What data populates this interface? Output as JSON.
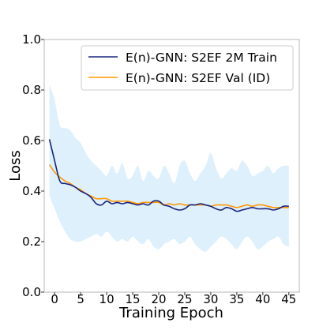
{
  "chart_data": {
    "type": "line",
    "xlabel": "Training Epoch",
    "ylabel": "Loss",
    "xlim": [
      -2,
      47
    ],
    "ylim": [
      0.0,
      1.0
    ],
    "xticks": [
      0,
      5,
      10,
      15,
      20,
      25,
      30,
      35,
      40,
      45
    ],
    "yticks": [
      0.0,
      0.2,
      0.4,
      0.6,
      0.8,
      1.0
    ],
    "ytick_labels": [
      "0.0",
      "0.2",
      "0.4",
      "0.6",
      "0.8",
      "1.0"
    ],
    "grid": false,
    "legend_position": "top-right",
    "band": {
      "color": "#ddf0fb",
      "x": [
        -1,
        0,
        1,
        2,
        3,
        4,
        5,
        6,
        7,
        8,
        9,
        10,
        11,
        12,
        13,
        14,
        15,
        16,
        17,
        18,
        19,
        20,
        21,
        22,
        23,
        24,
        25,
        26,
        27,
        28,
        29,
        30,
        31,
        32,
        33,
        34,
        35,
        36,
        37,
        38,
        39,
        40,
        41,
        42,
        43,
        44,
        45
      ],
      "upper": [
        0.82,
        0.76,
        0.66,
        0.65,
        0.64,
        0.61,
        0.59,
        0.55,
        0.52,
        0.5,
        0.48,
        0.46,
        0.5,
        0.47,
        0.51,
        0.45,
        0.46,
        0.5,
        0.44,
        0.48,
        0.46,
        0.45,
        0.5,
        0.47,
        0.43,
        0.5,
        0.52,
        0.47,
        0.44,
        0.47,
        0.5,
        0.55,
        0.49,
        0.45,
        0.47,
        0.49,
        0.48,
        0.52,
        0.5,
        0.46,
        0.47,
        0.48,
        0.5,
        0.47,
        0.49,
        0.5,
        0.5
      ],
      "lower": [
        0.38,
        0.33,
        0.28,
        0.24,
        0.21,
        0.2,
        0.2,
        0.21,
        0.22,
        0.23,
        0.22,
        0.24,
        0.22,
        0.2,
        0.21,
        0.2,
        0.22,
        0.2,
        0.19,
        0.21,
        0.18,
        0.17,
        0.19,
        0.2,
        0.21,
        0.19,
        0.2,
        0.22,
        0.19,
        0.17,
        0.16,
        0.18,
        0.2,
        0.22,
        0.21,
        0.19,
        0.17,
        0.2,
        0.22,
        0.2,
        0.17,
        0.18,
        0.2,
        0.21,
        0.22,
        0.19,
        0.18
      ]
    },
    "series": [
      {
        "name": "E(n)-GNN: S2EF 2M Train",
        "color": "#1a237e",
        "x": [
          -1,
          0,
          1,
          2,
          3,
          4,
          5,
          6,
          7,
          8,
          9,
          10,
          11,
          12,
          13,
          14,
          15,
          16,
          17,
          18,
          19,
          20,
          21,
          22,
          23,
          24,
          25,
          26,
          27,
          28,
          29,
          30,
          31,
          32,
          33,
          34,
          35,
          36,
          37,
          38,
          39,
          40,
          41,
          42,
          43,
          44,
          45
        ],
        "values": [
          0.605,
          0.52,
          0.44,
          0.43,
          0.425,
          0.415,
          0.4,
          0.39,
          0.375,
          0.35,
          0.345,
          0.36,
          0.35,
          0.355,
          0.35,
          0.355,
          0.35,
          0.345,
          0.35,
          0.345,
          0.36,
          0.36,
          0.345,
          0.34,
          0.33,
          0.325,
          0.33,
          0.345,
          0.345,
          0.35,
          0.345,
          0.34,
          0.33,
          0.325,
          0.335,
          0.33,
          0.32,
          0.325,
          0.33,
          0.335,
          0.33,
          0.33,
          0.33,
          0.325,
          0.33,
          0.34,
          0.34
        ]
      },
      {
        "name": "E(n)-GNN: S2EF Val (ID)",
        "color": "#ff9800",
        "x": [
          -1,
          0,
          1,
          2,
          3,
          4,
          5,
          6,
          7,
          8,
          9,
          10,
          11,
          12,
          13,
          14,
          15,
          16,
          17,
          18,
          19,
          20,
          21,
          22,
          23,
          24,
          25,
          26,
          27,
          28,
          29,
          30,
          31,
          32,
          33,
          34,
          35,
          36,
          37,
          38,
          39,
          40,
          41,
          42,
          43,
          44,
          45
        ],
        "values": [
          0.505,
          0.475,
          0.455,
          0.44,
          0.43,
          0.415,
          0.405,
          0.39,
          0.38,
          0.37,
          0.37,
          0.37,
          0.36,
          0.36,
          0.36,
          0.36,
          0.355,
          0.35,
          0.355,
          0.355,
          0.355,
          0.355,
          0.345,
          0.35,
          0.345,
          0.35,
          0.345,
          0.345,
          0.345,
          0.345,
          0.345,
          0.34,
          0.345,
          0.345,
          0.345,
          0.34,
          0.335,
          0.34,
          0.345,
          0.34,
          0.345,
          0.345,
          0.34,
          0.335,
          0.335,
          0.335,
          0.335
        ]
      }
    ]
  }
}
